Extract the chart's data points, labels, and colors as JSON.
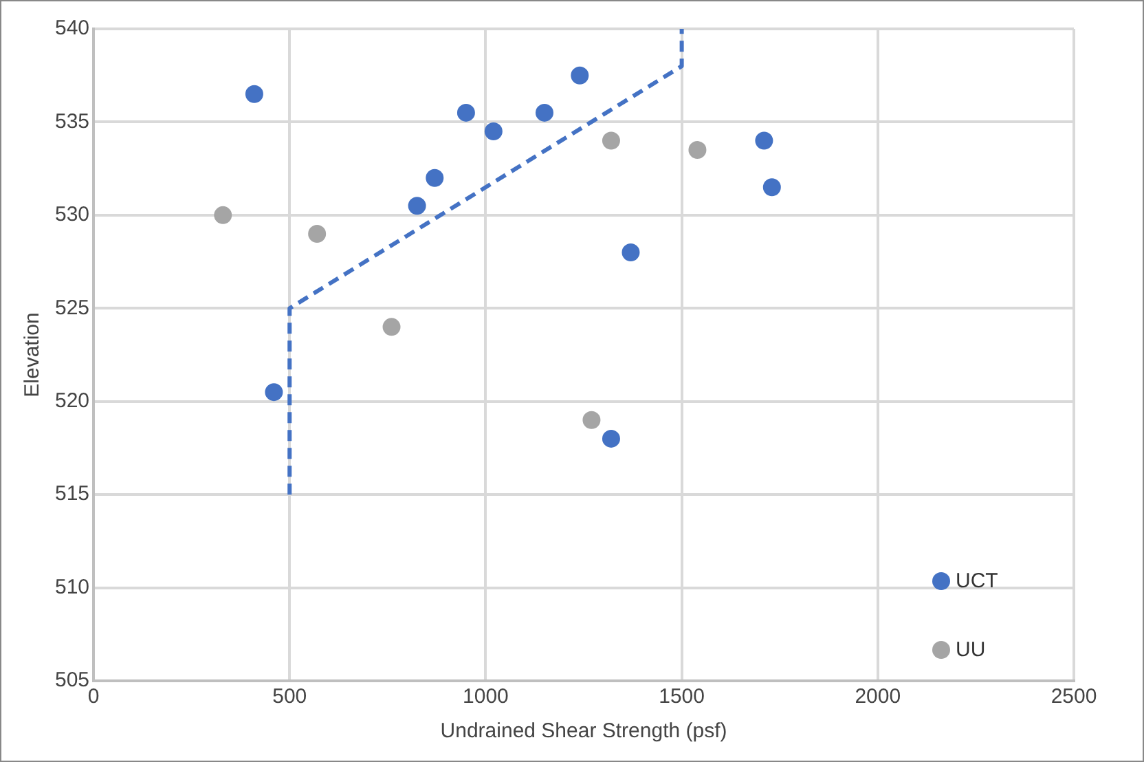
{
  "chart_data": {
    "type": "scatter",
    "xlabel": "Undrained Shear Strength (psf)",
    "ylabel": "Elevation",
    "xlim": [
      0,
      2500
    ],
    "xticks": [
      0,
      500,
      1000,
      1500,
      2000,
      2500
    ],
    "ylim": [
      505,
      540
    ],
    "yticks": [
      505,
      510,
      515,
      520,
      525,
      530,
      535,
      540
    ],
    "grid": true,
    "legend": "bottom right",
    "series": [
      {
        "name": "UCT",
        "color": "#4472c4",
        "marker": "circle",
        "x": [
          410,
          460,
          825,
          870,
          950,
          1020,
          1150,
          1240,
          1370,
          1320,
          1710,
          1730
        ],
        "values": [
          536.5,
          520.5,
          530.5,
          532,
          535.5,
          534.5,
          535.5,
          537.5,
          528,
          518,
          534,
          531.5
        ]
      },
      {
        "name": "UU",
        "color": "#a5a5a5",
        "marker": "circle",
        "x": [
          330,
          570,
          760,
          1320,
          1540,
          1270
        ],
        "values": [
          530,
          529,
          524,
          534,
          533.5,
          519
        ]
      },
      {
        "type": "line",
        "color": "#4472c4",
        "line_style": "dashed",
        "marker": "none",
        "x": [
          500,
          500,
          1500,
          1500
        ],
        "values": [
          515,
          525,
          538,
          540
        ]
      }
    ]
  }
}
